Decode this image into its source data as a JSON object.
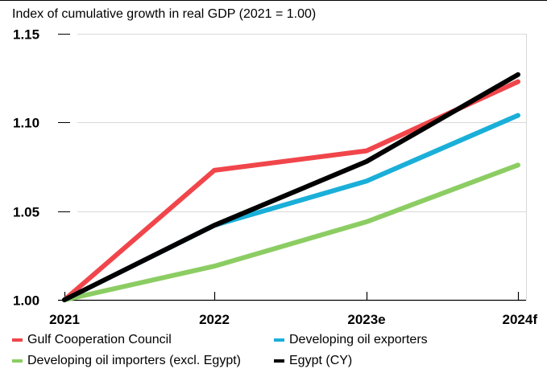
{
  "chart_data": {
    "type": "line",
    "title": "Index of cumulative growth in real GDP (2021 = 1.00)",
    "categories": [
      "2021",
      "2022",
      "2023e",
      "2024f"
    ],
    "ylim": [
      1.0,
      1.15
    ],
    "yticks": [
      "1.00",
      "1.05",
      "1.10",
      "1.15"
    ],
    "grid": true,
    "legend_position": "bottom",
    "series": [
      {
        "name": "Gulf Cooperation Council",
        "color": "#f0464b",
        "values": [
          1.0,
          1.073,
          1.084,
          1.123
        ]
      },
      {
        "name": "Developing oil exporters",
        "color": "#1aafd8",
        "values": [
          1.0,
          1.042,
          1.067,
          1.104
        ]
      },
      {
        "name": "Developing oil importers (excl. Egypt)",
        "color": "#8ccd63",
        "values": [
          1.0,
          1.019,
          1.044,
          1.076
        ]
      },
      {
        "name": "Egypt (CY)",
        "color": "#000000",
        "values": [
          1.0,
          1.042,
          1.078,
          1.127
        ]
      }
    ]
  }
}
